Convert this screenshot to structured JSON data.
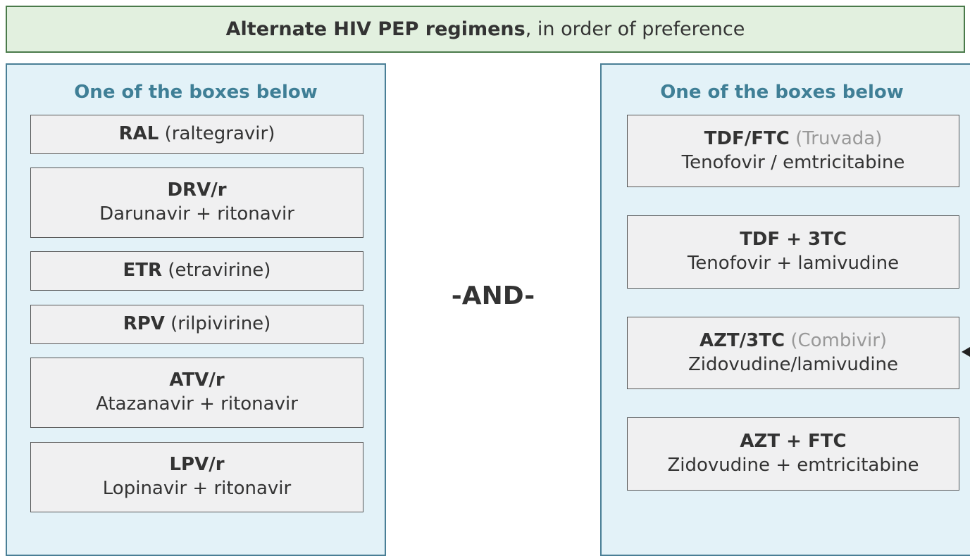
{
  "header": {
    "bold": "Alternate HIV PEP regimens",
    "rest": ", in order of preference"
  },
  "connector": "-AND-",
  "left": {
    "title": "One of the boxes below",
    "boxes": [
      {
        "abbr": "RAL",
        "paren": "(raltegravir)"
      },
      {
        "abbr": "DRV/r",
        "full": "Darunavir + ritonavir"
      },
      {
        "abbr": "ETR",
        "paren": "(etravirine)"
      },
      {
        "abbr": "RPV",
        "paren": "(rilpivirine)"
      },
      {
        "abbr": "ATV/r",
        "full": "Atazanavir + ritonavir"
      },
      {
        "abbr": "LPV/r",
        "full": "Lopinavir + ritonavir"
      }
    ]
  },
  "right": {
    "title": "One of the boxes below",
    "boxes": [
      {
        "abbr": "TDF/FTC",
        "brand": "(Truvada)",
        "full": "Tenofovir / emtricitabine"
      },
      {
        "abbr": "TDF + 3TC",
        "full": "Tenofovir + lamivudine"
      },
      {
        "abbr": "AZT/3TC",
        "brand": "(Combivir)",
        "full": "Zidovudine/lamivudine"
      },
      {
        "abbr": "AZT + FTC",
        "full": "Zidovudine + emtricitabine"
      }
    ]
  }
}
